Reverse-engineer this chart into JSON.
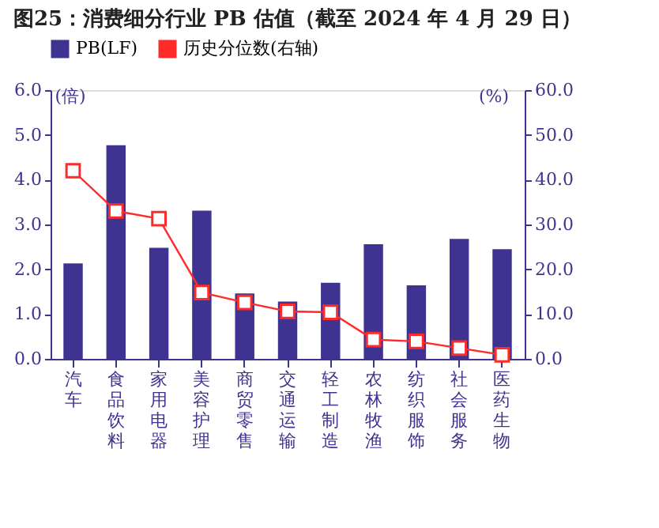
{
  "chart_data": {
    "type": "bar",
    "title": "图25：消费细分行业 PB 估值（截至 2024 年 4 月 29 日）",
    "categories": [
      "汽车",
      "食品饮料",
      "家用电器",
      "美容护理",
      "商贸零售",
      "交通运输",
      "轻工制造",
      "农林牧渔",
      "纺织服饰",
      "社会服务",
      "医药生物"
    ],
    "series": [
      {
        "name": "PB(LF)",
        "color": "#3f3391",
        "values": [
          2.13,
          4.77,
          2.48,
          3.31,
          1.46,
          1.28,
          1.7,
          2.56,
          1.64,
          2.68,
          2.45
        ]
      },
      {
        "name": "历史分位数(右轴)",
        "type": "line",
        "axis": "y2",
        "color": "#ff2a2a",
        "marker": "square",
        "values": [
          42.0,
          33.0,
          31.3,
          14.8,
          12.6,
          10.6,
          10.4,
          4.3,
          3.9,
          2.4,
          0.9
        ]
      }
    ],
    "ylabel": "(倍)",
    "y2label": "(%)",
    "ylim": [
      0,
      6
    ],
    "yticks": [
      {
        "value": 0,
        "label": "0.0"
      },
      {
        "value": 1,
        "label": "1.0"
      },
      {
        "value": 2,
        "label": "2.0"
      },
      {
        "value": 3,
        "label": "3.0"
      },
      {
        "value": 4,
        "label": "4.0"
      },
      {
        "value": 5,
        "label": "5.0"
      },
      {
        "value": 6,
        "label": "6.0"
      }
    ],
    "y2lim": [
      0,
      60
    ],
    "y2ticks": [
      {
        "value": 0,
        "label": "0.0"
      },
      {
        "value": 10,
        "label": "10.0"
      },
      {
        "value": 20,
        "label": "20.0"
      },
      {
        "value": 30,
        "label": "30.0"
      },
      {
        "value": 40,
        "label": "40.0"
      },
      {
        "value": 50,
        "label": "50.0"
      },
      {
        "value": 60,
        "label": "60.0"
      }
    ],
    "grid": false,
    "legend": "top"
  }
}
